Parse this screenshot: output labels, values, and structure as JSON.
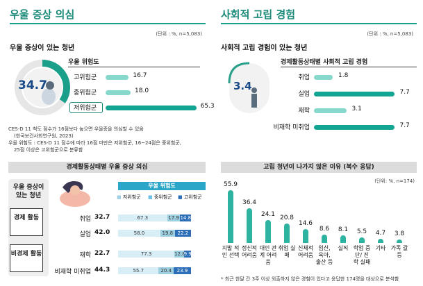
{
  "left": {
    "section_title": "우울 증상 의심",
    "unit": "(단위 : %, n=5,083)",
    "subtitle": "우울 증상이 있는 청년",
    "donut_value": "34.7",
    "legend_title": "우울 위험도",
    "risk_bars": [
      {
        "label": "고위험군",
        "value": 16.7,
        "display": "16.7"
      },
      {
        "label": "중위험군",
        "value": 18.0,
        "display": "18.0"
      },
      {
        "label": "저위험군",
        "value": 65.3,
        "display": "65.3"
      }
    ],
    "notes": [
      "CES-D 11 척도 점수가 16점보다 높으면 우울증을 의심할 수 있음",
      "(한국보건사회연구원, 2023)",
      "우울 위험도 : CES-D 11 점수에 따라 16점 미만은 저위험군, 16~24점은 중위험군,",
      "25점 이상은 고위험군으로 분류함"
    ],
    "banner": "경제활동상태별 우울 증상 의심",
    "table": {
      "row_header": "우울 증상이 있는 청년",
      "risk_header": "우울 위험도",
      "risk_cols": [
        "저위험군",
        "중위험군",
        "고위험군"
      ],
      "groups": [
        {
          "name": "경제 활동",
          "rows": [
            {
              "label": "취업",
              "total": "32.7",
              "low": 67.3,
              "mid": 17.9,
              "high": 14.8
            },
            {
              "label": "실업",
              "total": "42.0",
              "low": 58.0,
              "mid": 19.8,
              "high": 22.2
            }
          ]
        },
        {
          "name": "비경제 활동",
          "rows": [
            {
              "label": "재학",
              "total": "22.7",
              "low": 77.3,
              "mid": 12.8,
              "high": 9.9
            },
            {
              "label": "비재학 미취업",
              "total": "44.3",
              "low": 55.7,
              "mid": 20.4,
              "high": 23.9
            }
          ]
        }
      ]
    }
  },
  "right": {
    "section_title": "사회적 고립 경험",
    "unit": "(단위 : %, n=5,083)",
    "subtitle": "사회적 고립 경험이 있는 청년",
    "donut_value": "3.4",
    "legend_title": "경제활동상태별 사회적 고립 경험",
    "bars": [
      {
        "label": "취업",
        "value": 1.8,
        "display": "1.8"
      },
      {
        "label": "실업",
        "value": 7.7,
        "display": "7.7"
      },
      {
        "label": "재학",
        "value": 3.1,
        "display": "3.1"
      },
      {
        "label": "비재학 미취업",
        "value": 7.7,
        "display": "7.7"
      }
    ],
    "banner": "고립 청년이 나가지 않은 이유 (복수 응답)",
    "unit2": "(단위: %, n=174)",
    "footnote": "* 최근 한달 간 3주 이상 외출하지 않은 경험이 있다고 응답한 174명을 대상으로 분석함"
  },
  "chart_data": [
    {
      "type": "bar",
      "title": "우울 증상이 있는 청년",
      "categories": [
        "고위험군",
        "중위험군",
        "저위험군"
      ],
      "values": [
        16.7,
        18.0,
        65.3
      ]
    },
    {
      "type": "bar",
      "title": "경제활동상태별 우울 증상 의심",
      "categories": [
        "취업",
        "실업",
        "재학",
        "비재학 미취업"
      ],
      "series": [
        {
          "name": "저위험군",
          "values": [
            67.3,
            58.0,
            77.3,
            55.7
          ]
        },
        {
          "name": "중위험군",
          "values": [
            17.9,
            19.8,
            12.8,
            20.4
          ]
        },
        {
          "name": "고위험군",
          "values": [
            14.8,
            22.2,
            9.9,
            23.9
          ]
        }
      ]
    },
    {
      "type": "bar",
      "title": "경제활동상태별 사회적 고립 경험",
      "categories": [
        "취업",
        "실업",
        "재학",
        "비재학 미취업"
      ],
      "values": [
        1.8,
        7.7,
        3.1,
        7.7
      ]
    },
    {
      "type": "bar",
      "title": "고립 청년이 나가지 않은 이유 (복수 응답)",
      "categories": [
        "지발 적인 선택",
        "정신적 어려움",
        "대인 관계 어려움",
        "취업 실패",
        "신체적 어려움",
        "임신, 육아, 출산 등",
        "실직",
        "학업 중단/ 진학 실패",
        "기타",
        "가족 갈등"
      ],
      "values": [
        55.9,
        36.4,
        24.1,
        20.8,
        14.6,
        8.6,
        8.1,
        5.5,
        4.7,
        3.8
      ]
    }
  ]
}
